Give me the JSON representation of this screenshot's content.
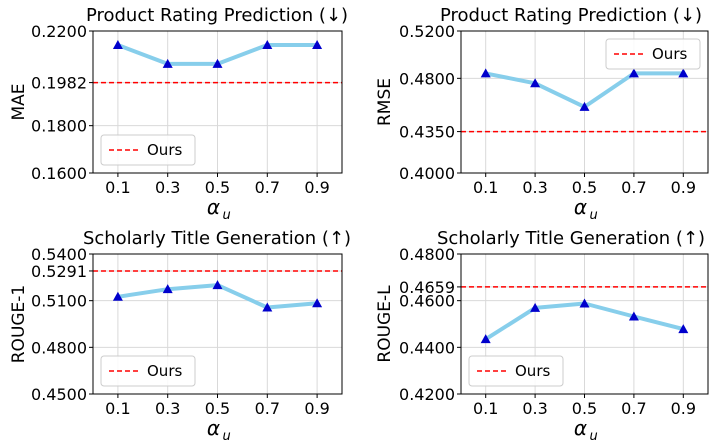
{
  "chart_data": [
    {
      "type": "line",
      "title": "Product Rating Prediction (↓)",
      "xlabel": "α",
      "xlabel_sub": "u",
      "ylabel": "MAE",
      "categories": [
        "0.1",
        "0.3",
        "0.5",
        "0.7",
        "0.9"
      ],
      "ylim": [
        0.16,
        0.22
      ],
      "yticks": [
        0.16,
        0.18,
        0.1982,
        0.22
      ],
      "ytick_labels": [
        "0.1600",
        "0.1800",
        "0.1982",
        "0.2200"
      ],
      "series": [
        {
          "name": "MAE",
          "values": [
            0.2141,
            0.2061,
            0.2061,
            0.2141,
            0.2141
          ],
          "line_color": "#87ceeb",
          "marker_color": "#0000cc"
        }
      ],
      "reference": {
        "label": "Ours",
        "value": 0.1982,
        "color": "#ff0000"
      },
      "legend": "lower-left",
      "grid": true
    },
    {
      "type": "line",
      "title": "Product Rating Prediction (↓)",
      "xlabel": "α",
      "xlabel_sub": "u",
      "ylabel": "RMSE",
      "categories": [
        "0.1",
        "0.3",
        "0.5",
        "0.7",
        "0.9"
      ],
      "ylim": [
        0.4,
        0.52
      ],
      "yticks": [
        0.4,
        0.435,
        0.48,
        0.52
      ],
      "ytick_labels": [
        "0.4000",
        "0.4350",
        "0.4800",
        "0.5200"
      ],
      "series": [
        {
          "name": "RMSE",
          "values": [
            0.4842,
            0.4758,
            0.4559,
            0.4842,
            0.4842
          ],
          "line_color": "#87ceeb",
          "marker_color": "#0000cc"
        }
      ],
      "reference": {
        "label": "Ours",
        "value": 0.435,
        "color": "#ff0000"
      },
      "legend": "upper-right",
      "grid": true
    },
    {
      "type": "line",
      "title": "Scholarly Title Generation (↑)",
      "xlabel": "α",
      "xlabel_sub": "u",
      "ylabel": "ROUGE-1",
      "categories": [
        "0.1",
        "0.3",
        "0.5",
        "0.7",
        "0.9"
      ],
      "ylim": [
        0.45,
        0.54
      ],
      "yticks": [
        0.45,
        0.48,
        0.51,
        0.5291,
        0.54
      ],
      "ytick_labels": [
        "0.4500",
        "0.4800",
        "0.5100",
        "0.5291",
        "0.5400"
      ],
      "series": [
        {
          "name": "ROUGE-1",
          "values": [
            0.5125,
            0.5174,
            0.52,
            0.5056,
            0.5083
          ],
          "line_color": "#87ceeb",
          "marker_color": "#0000cc"
        }
      ],
      "reference": {
        "label": "Ours",
        "value": 0.5291,
        "color": "#ff0000"
      },
      "legend": "lower-left",
      "grid": true
    },
    {
      "type": "line",
      "title": "Scholarly Title Generation (↑)",
      "xlabel": "α",
      "xlabel_sub": "u",
      "ylabel": "ROUGE-L",
      "categories": [
        "0.1",
        "0.3",
        "0.5",
        "0.7",
        "0.9"
      ],
      "ylim": [
        0.42,
        0.48
      ],
      "yticks": [
        0.42,
        0.44,
        0.46,
        0.4659,
        0.48
      ],
      "ytick_labels": [
        "0.4200",
        "0.4400",
        "0.4600",
        "0.4659",
        "0.4800"
      ],
      "series": [
        {
          "name": "ROUGE-L",
          "values": [
            0.4435,
            0.4569,
            0.4588,
            0.4532,
            0.4478
          ],
          "line_color": "#87ceeb",
          "marker_color": "#0000cc"
        }
      ],
      "reference": {
        "label": "Ours",
        "value": 0.4659,
        "color": "#ff0000"
      },
      "legend": "lower-left",
      "grid": true
    }
  ]
}
